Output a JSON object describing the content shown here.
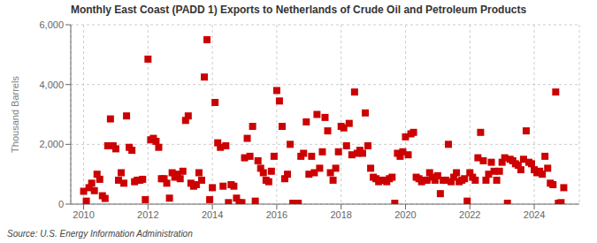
{
  "chart_data": {
    "type": "scatter",
    "title": "Monthly East Coast (PADD 1) Exports to Netherlands of Crude Oil and Petroleum Products",
    "ylabel": "Thousand Barrels",
    "annotations": [
      "Source: U.S. Energy Information Administration"
    ],
    "color": "#cc0000",
    "marker": "square",
    "grid": true,
    "xlim": [
      2009.6,
      2025.4
    ],
    "xticks": [
      2010,
      2012,
      2014,
      2016,
      2018,
      2020,
      2022,
      2024
    ],
    "ylim": [
      0,
      6000
    ],
    "yticks": [
      0,
      {
        "value": 2000,
        "label": "2,000"
      },
      {
        "value": 4000,
        "label": "4,000"
      },
      {
        "value": 6000,
        "label": "6,000"
      }
    ],
    "x": [
      2010.0,
      2010.083,
      2010.167,
      2010.25,
      2010.333,
      2010.417,
      2010.5,
      2010.583,
      2010.667,
      2010.75,
      2010.833,
      2010.917,
      2011.0,
      2011.083,
      2011.167,
      2011.25,
      2011.333,
      2011.417,
      2011.5,
      2011.583,
      2011.667,
      2011.75,
      2011.833,
      2011.917,
      2012.0,
      2012.083,
      2012.167,
      2012.25,
      2012.333,
      2012.417,
      2012.5,
      2012.583,
      2012.667,
      2012.75,
      2012.833,
      2012.917,
      2013.0,
      2013.083,
      2013.167,
      2013.25,
      2013.333,
      2013.417,
      2013.5,
      2013.583,
      2013.667,
      2013.75,
      2013.833,
      2013.917,
      2014.0,
      2014.083,
      2014.167,
      2014.25,
      2014.333,
      2014.417,
      2014.5,
      2014.583,
      2014.667,
      2014.75,
      2014.833,
      2014.917,
      2015.0,
      2015.083,
      2015.167,
      2015.25,
      2015.333,
      2015.417,
      2015.5,
      2015.583,
      2015.667,
      2015.75,
      2015.833,
      2015.917,
      2016.0,
      2016.083,
      2016.167,
      2016.25,
      2016.333,
      2016.417,
      2016.5,
      2016.583,
      2016.667,
      2016.75,
      2016.833,
      2016.917,
      2017.0,
      2017.083,
      2017.167,
      2017.25,
      2017.333,
      2017.417,
      2017.5,
      2017.583,
      2017.667,
      2017.75,
      2017.833,
      2017.917,
      2018.0,
      2018.083,
      2018.167,
      2018.25,
      2018.333,
      2018.417,
      2018.5,
      2018.583,
      2018.667,
      2018.75,
      2018.833,
      2018.917,
      2019.0,
      2019.083,
      2019.167,
      2019.25,
      2019.333,
      2019.417,
      2019.5,
      2019.583,
      2019.667,
      2019.75,
      2019.833,
      2019.917,
      2020.0,
      2020.083,
      2020.167,
      2020.25,
      2020.333,
      2020.417,
      2020.5,
      2020.583,
      2020.667,
      2020.75,
      2020.833,
      2020.917,
      2021.0,
      2021.083,
      2021.167,
      2021.25,
      2021.333,
      2021.417,
      2021.5,
      2021.583,
      2021.667,
      2021.75,
      2021.833,
      2021.917,
      2022.0,
      2022.083,
      2022.167,
      2022.25,
      2022.333,
      2022.417,
      2022.5,
      2022.583,
      2022.667,
      2022.75,
      2022.833,
      2022.917,
      2023.0,
      2023.083,
      2023.167,
      2023.25,
      2023.333,
      2023.417,
      2023.5,
      2023.583,
      2023.667,
      2023.75,
      2023.833,
      2023.917,
      2024.0,
      2024.083,
      2024.167,
      2024.25,
      2024.333,
      2024.417,
      2024.5,
      2024.583,
      2024.667,
      2024.75,
      2024.833,
      2024.917
    ],
    "values": [
      430,
      100,
      550,
      700,
      450,
      1000,
      830,
      280,
      190,
      1950,
      2850,
      1950,
      1850,
      800,
      1050,
      700,
      2950,
      1900,
      1800,
      750,
      800,
      800,
      830,
      150,
      4850,
      2150,
      2200,
      2100,
      1900,
      850,
      850,
      700,
      200,
      1050,
      900,
      1000,
      850,
      1100,
      2800,
      2950,
      700,
      600,
      650,
      1050,
      800,
      4250,
      5500,
      150,
      550,
      3400,
      2050,
      1900,
      600,
      1950,
      50,
      650,
      600,
      200,
      50,
      50,
      1550,
      2200,
      1600,
      2600,
      100,
      1450,
      1200,
      1050,
      800,
      750,
      1100,
      1600,
      3800,
      3450,
      2600,
      850,
      1000,
      2000,
      30,
      30,
      30,
      1600,
      1700,
      2750,
      1000,
      1600,
      1050,
      3000,
      1200,
      1750,
      2900,
      2450,
      1050,
      800,
      1200,
      1750,
      2600,
      2550,
      1950,
      2700,
      1650,
      3750,
      1700,
      1800,
      1700,
      3050,
      1950,
      1200,
      900,
      850,
      750,
      800,
      800,
      750,
      850,
      900,
      30,
      1700,
      1600,
      1750,
      2250,
      1650,
      2350,
      2400,
      900,
      850,
      750,
      800,
      800,
      1050,
      900,
      800,
      950,
      350,
      800,
      800,
      2000,
      750,
      900,
      1050,
      750,
      800,
      850,
      100,
      1050,
      900,
      800,
      1550,
      2400,
      1450,
      800,
      1000,
      1400,
      1100,
      800,
      1100,
      1400,
      1550,
      30,
      1500,
      1450,
      1350,
      1300,
      1150,
      1500,
      2450,
      1400,
      1350,
      1150,
      1050,
      1100,
      1000,
      1600,
      1200,
      700,
      650,
      3750,
      30,
      50,
      550
    ]
  }
}
